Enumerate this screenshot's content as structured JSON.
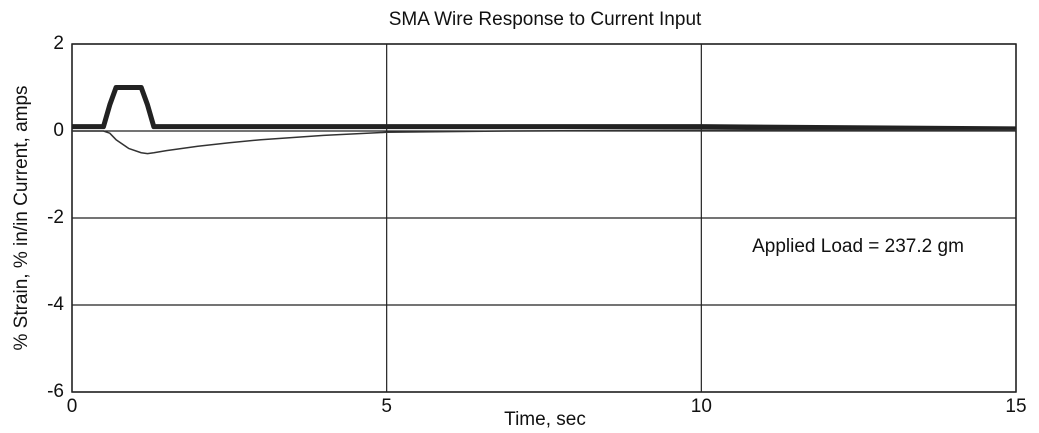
{
  "chart_data": {
    "type": "line",
    "title": "SMA Wire Response to Current Input",
    "xlabel": "Time, sec",
    "ylabel": "% Strain, % in/in   Current, amps",
    "annotation": "Applied Load = 237.2 gm",
    "x": [
      0,
      0.3,
      0.5,
      0.6,
      0.7,
      0.9,
      1.1,
      1.2,
      1.3,
      1.5,
      2,
      2.5,
      3,
      4,
      5,
      7,
      10,
      15
    ],
    "series": [
      {
        "color": "#222222",
        "width": 5,
        "values": [
          0.1,
          0.1,
          0.1,
          0.6,
          1.0,
          1.0,
          1.0,
          0.6,
          0.1,
          0.1,
          0.1,
          0.1,
          0.1,
          0.1,
          0.1,
          0.1,
          0.1,
          0.05
        ]
      },
      {
        "color": "#333333",
        "width": 1.5,
        "values": [
          0,
          0,
          0,
          -0.05,
          -0.2,
          -0.4,
          -0.5,
          -0.52,
          -0.5,
          -0.45,
          -0.35,
          -0.27,
          -0.2,
          -0.1,
          -0.03,
          0,
          0.02,
          0.02
        ]
      }
    ],
    "xlim": [
      0,
      15
    ],
    "xticks": [
      0,
      5,
      10,
      15
    ],
    "ylim": [
      -6,
      2
    ],
    "yticks": [
      -6,
      -4,
      -2,
      0,
      2
    ],
    "grid": true
  }
}
